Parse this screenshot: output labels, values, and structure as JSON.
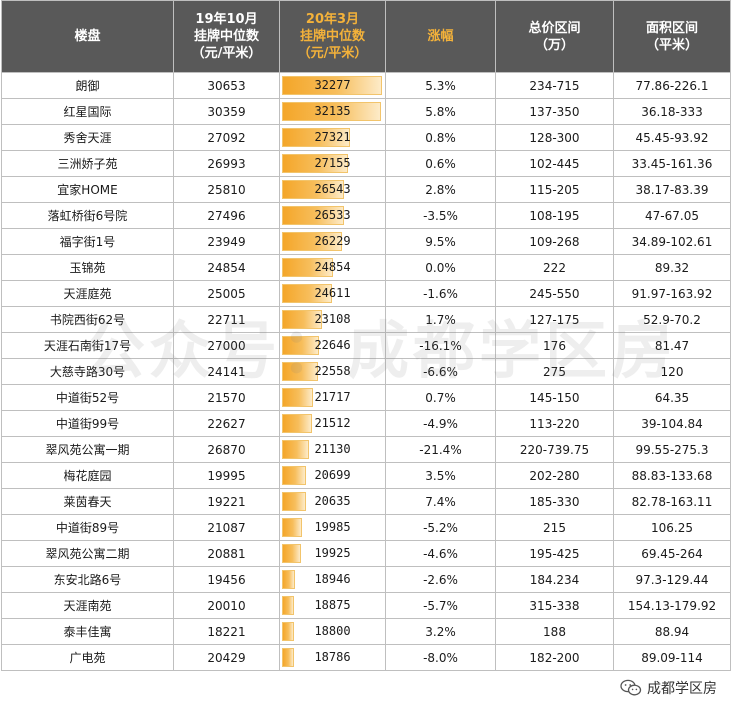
{
  "headers": [
    {
      "line1": "楼盘",
      "line2": "",
      "line3": ""
    },
    {
      "line1": "19年10月",
      "line2": "挂牌中位数",
      "line3": "（元/平米）"
    },
    {
      "line1": "20年3月",
      "line2": "挂牌中位数",
      "line3": "（元/平米）"
    },
    {
      "line1": "涨幅",
      "line2": "",
      "line3": ""
    },
    {
      "line1": "总价区间",
      "line2": "（万）",
      "line3": ""
    },
    {
      "line1": "面积区间",
      "line2": "（平米）",
      "line3": ""
    }
  ],
  "bar_max": 32277,
  "rows": [
    {
      "name": "朗御",
      "oct19": "30653",
      "mar20": "32277",
      "change": "5.3%",
      "price": "234-715",
      "area": "77.86-226.1"
    },
    {
      "name": "红星国际",
      "oct19": "30359",
      "mar20": "32135",
      "change": "5.8%",
      "price": "137-350",
      "area": "36.18-333"
    },
    {
      "name": "秀舍天涯",
      "oct19": "27092",
      "mar20": "27321",
      "change": "0.8%",
      "price": "128-300",
      "area": "45.45-93.92"
    },
    {
      "name": "三洲娇子苑",
      "oct19": "26993",
      "mar20": "27155",
      "change": "0.6%",
      "price": "102-445",
      "area": "33.45-161.36"
    },
    {
      "name": "宜家HOME",
      "oct19": "25810",
      "mar20": "26543",
      "change": "2.8%",
      "price": "115-205",
      "area": "38.17-83.39"
    },
    {
      "name": "落虹桥街6号院",
      "oct19": "27496",
      "mar20": "26533",
      "change": "-3.5%",
      "price": "108-195",
      "area": "47-67.05"
    },
    {
      "name": "福字街1号",
      "oct19": "23949",
      "mar20": "26229",
      "change": "9.5%",
      "price": "109-268",
      "area": "34.89-102.61"
    },
    {
      "name": "玉锦苑",
      "oct19": "24854",
      "mar20": "24854",
      "change": "0.0%",
      "price": "222",
      "area": "89.32"
    },
    {
      "name": "天涯庭苑",
      "oct19": "25005",
      "mar20": "24611",
      "change": "-1.6%",
      "price": "245-550",
      "area": "91.97-163.92"
    },
    {
      "name": "书院西街62号",
      "oct19": "22711",
      "mar20": "23108",
      "change": "1.7%",
      "price": "127-175",
      "area": "52.9-70.2"
    },
    {
      "name": "天涯石南街17号",
      "oct19": "27000",
      "mar20": "22646",
      "change": "-16.1%",
      "price": "176",
      "area": "81.47"
    },
    {
      "name": "大慈寺路30号",
      "oct19": "24141",
      "mar20": "22558",
      "change": "-6.6%",
      "price": "275",
      "area": "120"
    },
    {
      "name": "中道街52号",
      "oct19": "21570",
      "mar20": "21717",
      "change": "0.7%",
      "price": "145-150",
      "area": "64.35"
    },
    {
      "name": "中道街99号",
      "oct19": "22627",
      "mar20": "21512",
      "change": "-4.9%",
      "price": "113-220",
      "area": "39-104.84"
    },
    {
      "name": "翠风苑公寓一期",
      "oct19": "26870",
      "mar20": "21130",
      "change": "-21.4%",
      "price": "220-739.75",
      "area": "99.55-275.3"
    },
    {
      "name": "梅花庭园",
      "oct19": "19995",
      "mar20": "20699",
      "change": "3.5%",
      "price": "202-280",
      "area": "88.83-133.68"
    },
    {
      "name": "莱茵春天",
      "oct19": "19221",
      "mar20": "20635",
      "change": "7.4%",
      "price": "185-330",
      "area": "82.78-163.11"
    },
    {
      "name": "中道街89号",
      "oct19": "21087",
      "mar20": "19985",
      "change": "-5.2%",
      "price": "215",
      "area": "106.25"
    },
    {
      "name": "翠风苑公寓二期",
      "oct19": "20881",
      "mar20": "19925",
      "change": "-4.6%",
      "price": "195-425",
      "area": "69.45-264"
    },
    {
      "name": "东安北路6号",
      "oct19": "19456",
      "mar20": "18946",
      "change": "-2.6%",
      "price": "184.234",
      "area": "97.3-129.44"
    },
    {
      "name": "天涯南苑",
      "oct19": "20010",
      "mar20": "18875",
      "change": "-5.7%",
      "price": "315-338",
      "area": "154.13-179.92"
    },
    {
      "name": "泰丰佳寓",
      "oct19": "18221",
      "mar20": "18800",
      "change": "3.2%",
      "price": "188",
      "area": "88.94"
    },
    {
      "name": "广电苑",
      "oct19": "20429",
      "mar20": "18786",
      "change": "-8.0%",
      "price": "182-200",
      "area": "89.09-114"
    }
  ],
  "watermark": "公众号：成都学区房",
  "credit": "成都学区房",
  "credit_icon": "wechat-icon",
  "colors": {
    "header_bg": "#595959",
    "header_highlight": "#f4b23a",
    "bar": "#f4a629"
  }
}
